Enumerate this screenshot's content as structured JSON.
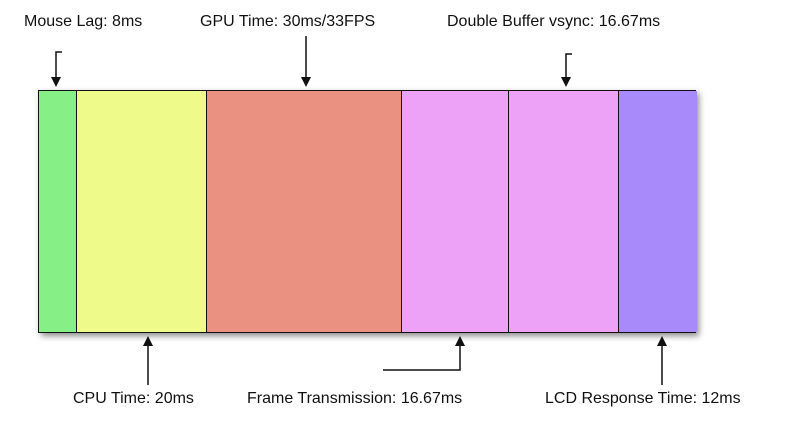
{
  "colors": {
    "mouse_lag": "#86ef86",
    "cpu_time": "#eefa8a",
    "gpu_time": "#eb9182",
    "frame_transmission": "#eda2f7",
    "double_buffer": "#eda2f7",
    "lcd_response": "#a88afa",
    "outline": "#111111"
  },
  "segments": [
    {
      "key": "mouse_lag",
      "label": "Mouse Lag: 8ms"
    },
    {
      "key": "cpu_time",
      "label": "CPU Time: 20ms"
    },
    {
      "key": "gpu_time",
      "label": "GPU Time: 30ms/33FPS"
    },
    {
      "key": "frame_transmission",
      "label": "Frame Transmission: 16.67ms"
    },
    {
      "key": "double_buffer",
      "label": "Double Buffer vsync: 16.67ms"
    },
    {
      "key": "lcd_response",
      "label": "LCD Response Time: 12ms"
    }
  ]
}
